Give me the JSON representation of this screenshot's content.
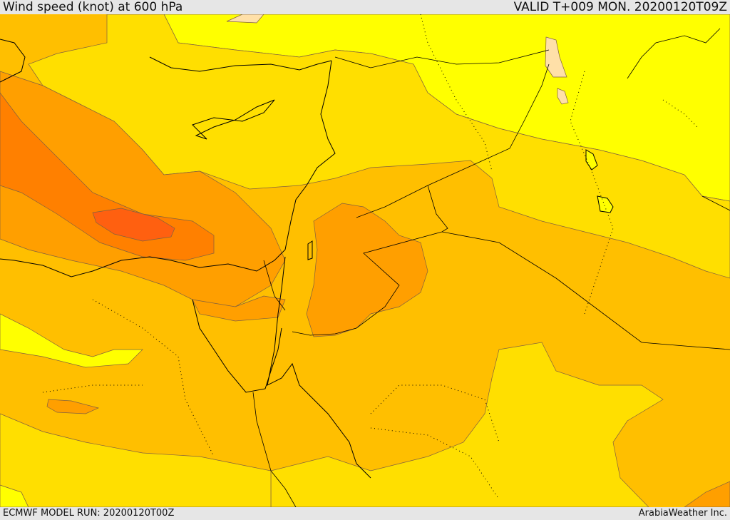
{
  "header": {
    "title": "Wind speed (knot) at 600 hPa",
    "valid": "VALID T+009 MON. 20200120T09Z"
  },
  "footer": {
    "model_run": "ECMWF MODEL RUN: 20200120T00Z",
    "credit": "ArabiaWeather Inc."
  },
  "palette": {
    "band_lowest": "#ffff00",
    "band_low": "#ffdf00",
    "band_mid": "#ffbf00",
    "band_high": "#ff9f00",
    "band_higher": "#ff8000",
    "band_max": "#ff6010",
    "band_calm": "#ffe0a8",
    "coast": "#000000",
    "contour": "#806040"
  }
}
